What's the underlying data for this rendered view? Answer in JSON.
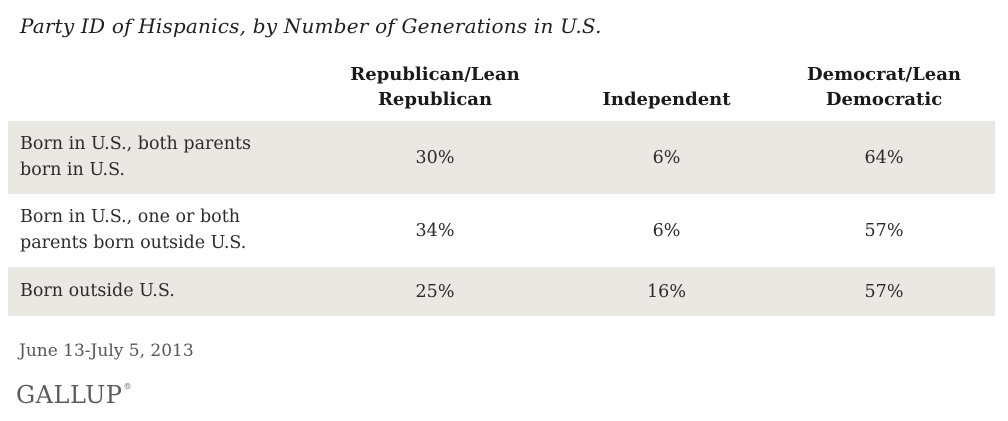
{
  "title": "Party ID of Hispanics, by Number of Generations in U.S.",
  "table": {
    "columns": [
      {
        "label": "Republican/Lean Republican"
      },
      {
        "label": "Independent"
      },
      {
        "label": "Democrat/Lean Democratic"
      }
    ],
    "rows": [
      {
        "label": "Born in U.S., both parents born in U.S.",
        "values": [
          "30%",
          "6%",
          "64%"
        ]
      },
      {
        "label": "Born in U.S., one or both parents born outside U.S.",
        "values": [
          "34%",
          "6%",
          "57%"
        ]
      },
      {
        "label": "Born outside U.S.",
        "values": [
          "25%",
          "16%",
          "57%"
        ]
      }
    ]
  },
  "footer": {
    "date_range": "June 13-July 5, 2013",
    "brand": "GALLUP",
    "brand_mark": "®"
  },
  "colors": {
    "row_stripe": "#e9e8e3",
    "text": "#2b2b2b",
    "muted_text": "#55565a",
    "brand_gray": "#5b5c60"
  },
  "chart_data": {
    "type": "table",
    "title": "Party ID of Hispanics, by Number of Generations in U.S.",
    "categories": [
      "Born in U.S., both parents born in U.S.",
      "Born in U.S., one or both parents born outside U.S.",
      "Born outside U.S."
    ],
    "series": [
      {
        "name": "Republican/Lean Republican",
        "values": [
          30,
          34,
          25
        ]
      },
      {
        "name": "Independent",
        "values": [
          6,
          6,
          16
        ]
      },
      {
        "name": "Democrat/Lean Democratic",
        "values": [
          64,
          57,
          57
        ]
      }
    ],
    "unit": "%",
    "date_range": "June 13-July 5, 2013",
    "source": "GALLUP",
    "layout": {
      "stripe_rows": [
        0,
        2
      ],
      "legend_position": "column-headers",
      "grid": false
    }
  }
}
